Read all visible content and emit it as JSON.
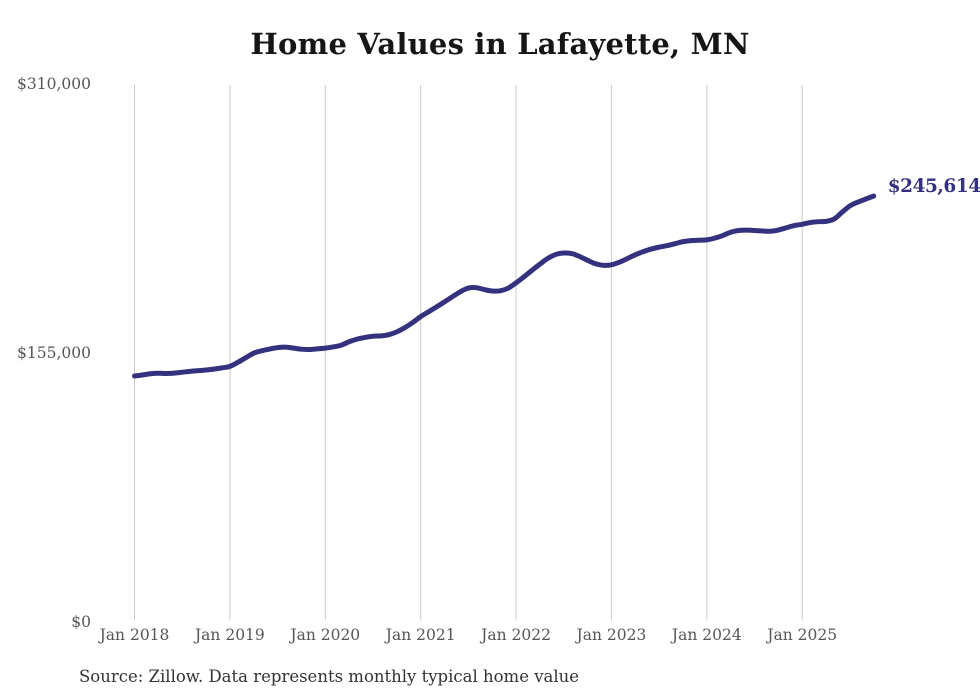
{
  "chart_data": {
    "type": "line",
    "title": "Home Values in Lafayette, MN",
    "series_name": "Monthly typical home value",
    "x": [
      "Jan 2018",
      "Feb 2018",
      "Mar 2018",
      "Apr 2018",
      "May 2018",
      "Jun 2018",
      "Jul 2018",
      "Aug 2018",
      "Sep 2018",
      "Oct 2018",
      "Nov 2018",
      "Dec 2018",
      "Jan 2019",
      "Feb 2019",
      "Mar 2019",
      "Apr 2019",
      "May 2019",
      "Jun 2019",
      "Jul 2019",
      "Aug 2019",
      "Sep 2019",
      "Oct 2019",
      "Nov 2019",
      "Dec 2019",
      "Jan 2020",
      "Feb 2020",
      "Mar 2020",
      "Apr 2020",
      "May 2020",
      "Jun 2020",
      "Jul 2020",
      "Aug 2020",
      "Sep 2020",
      "Oct 2020",
      "Nov 2020",
      "Dec 2020",
      "Jan 2021",
      "Feb 2021",
      "Mar 2021",
      "Apr 2021",
      "May 2021",
      "Jun 2021",
      "Jul 2021",
      "Aug 2021",
      "Sep 2021",
      "Oct 2021",
      "Nov 2021",
      "Dec 2021",
      "Jan 2022",
      "Feb 2022",
      "Mar 2022",
      "Apr 2022",
      "May 2022",
      "Jun 2022",
      "Jul 2022",
      "Aug 2022",
      "Sep 2022",
      "Oct 2022",
      "Nov 2022",
      "Dec 2022",
      "Jan 2023",
      "Feb 2023",
      "Mar 2023",
      "Apr 2023",
      "May 2023",
      "Jun 2023",
      "Jul 2023",
      "Aug 2023",
      "Sep 2023",
      "Oct 2023",
      "Nov 2023",
      "Dec 2023",
      "Jan 2024",
      "Feb 2024",
      "Mar 2024",
      "Apr 2024",
      "May 2024",
      "Jun 2024",
      "Jul 2024",
      "Aug 2024",
      "Sep 2024",
      "Oct 2024",
      "Nov 2024",
      "Dec 2024",
      "Jan 2025",
      "Feb 2025",
      "Mar 2025",
      "Apr 2025",
      "May 2025",
      "Jun 2025",
      "Jul 2025",
      "Aug 2025",
      "Sep 2025",
      "Oct 2025"
    ],
    "values": [
      141700,
      142300,
      143000,
      143300,
      143200,
      143400,
      143900,
      144400,
      144800,
      145200,
      145700,
      146400,
      147300,
      149600,
      152300,
      154900,
      156300,
      157300,
      158100,
      158400,
      157800,
      157200,
      157000,
      157400,
      157800,
      158500,
      159500,
      161500,
      163000,
      164000,
      164700,
      164900,
      165600,
      167200,
      169600,
      172600,
      176000,
      178800,
      181600,
      184500,
      187500,
      190400,
      192500,
      192700,
      191600,
      190800,
      190900,
      192400,
      195500,
      199000,
      202700,
      206300,
      209600,
      211900,
      212700,
      212400,
      210700,
      208500,
      206500,
      205600,
      205900,
      207400,
      209500,
      211700,
      213500,
      215000,
      216100,
      217000,
      218100,
      219300,
      219900,
      220100,
      220300,
      221300,
      222800,
      224700,
      225700,
      225900,
      225700,
      225400,
      225300,
      226000,
      227300,
      228600,
      229300,
      230300,
      230800,
      231000,
      232300,
      236200,
      239900,
      242100,
      243900,
      245614
    ],
    "ylim": [
      0,
      310000
    ],
    "y_ticks": [
      {
        "value": 0,
        "label": "$0"
      },
      {
        "value": 155000,
        "label": "$155,000"
      },
      {
        "value": 310000,
        "label": "$310,000"
      }
    ],
    "x_tick_labels": [
      "Jan 2018",
      "Jan 2019",
      "Jan 2020",
      "Jan 2021",
      "Jan 2022",
      "Jan 2023",
      "Jan 2024",
      "Jan 2025"
    ],
    "grid": "vertical",
    "legend": "none",
    "latest_value_label": "$245,614",
    "source_note": "Source: Zillow. Data represents monthly typical home value",
    "colors": {
      "line": "#34317f",
      "latest_label": "#34317f",
      "grid": "#cccccc",
      "title": "#161616",
      "tick_labels": "#565656",
      "source": "#333333",
      "background": "#ffffff"
    }
  }
}
